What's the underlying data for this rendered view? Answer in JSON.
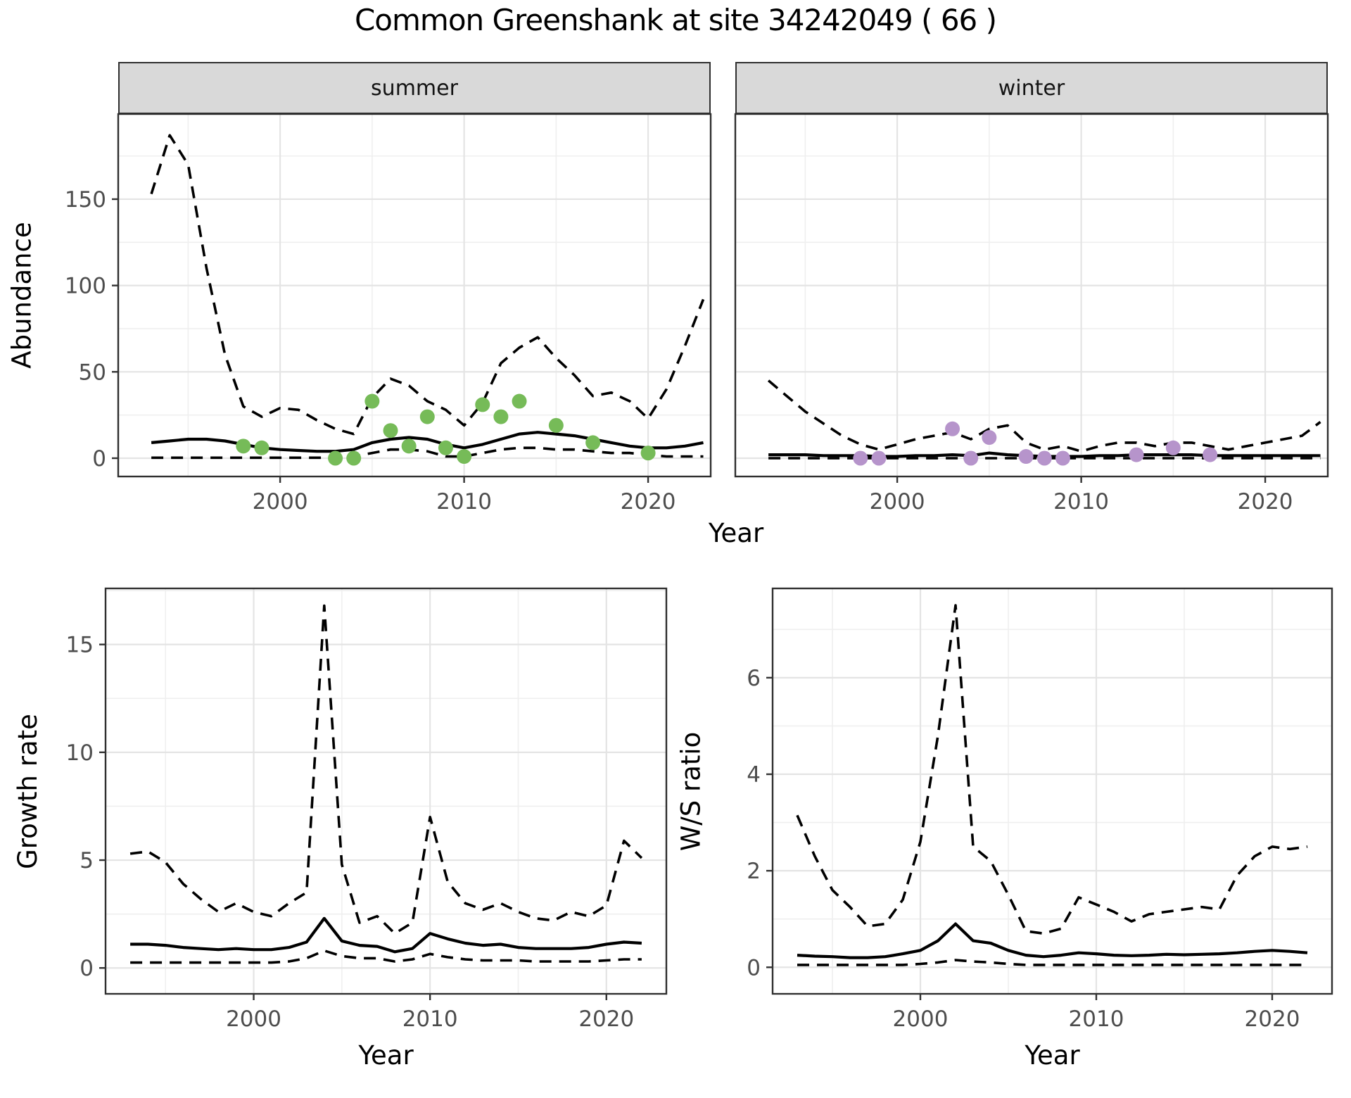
{
  "title": "Common Greenshank at site 34242049 ( 66 )",
  "facets": {
    "summer": "summer",
    "winter": "winter"
  },
  "axis_titles": {
    "abundance": "Abundance",
    "year_top": "Year",
    "growth_rate": "Growth rate",
    "year_growth": "Year",
    "ws_ratio": "W/S ratio",
    "year_ws": "Year"
  },
  "colors": {
    "point_summer": "#76BB58",
    "point_winter": "#B694CB",
    "line": "#000000",
    "grid_major": "#E4E4E4",
    "grid_minor": "#EFEFEF",
    "panel_border": "#2F2F2F",
    "tick_mark": "#333333",
    "tick_label": "#4D4D4D",
    "strip_fill": "#D9D9D9"
  },
  "chart_data": [
    {
      "id": "abundance-summer",
      "type": "line",
      "title": "summer",
      "xlabel": "Year",
      "ylabel": "Abundance",
      "xlim": [
        1991.2,
        2023.4
      ],
      "ylim": [
        -10.6,
        199.3
      ],
      "x_ticks": [
        2000,
        2010,
        2020
      ],
      "y_ticks": [
        0,
        50,
        100,
        150
      ],
      "show_y_tick_labels": true,
      "grid": true,
      "legend": "none",
      "x": [
        1993,
        1994,
        1995,
        1996,
        1997,
        1998,
        1999,
        2000,
        2001,
        2002,
        2003,
        2004,
        2005,
        2006,
        2007,
        2008,
        2009,
        2010,
        2011,
        2012,
        2013,
        2014,
        2015,
        2016,
        2017,
        2018,
        2019,
        2020,
        2021,
        2022,
        2023
      ],
      "series": [
        {
          "name": "upper_95ci",
          "style": "dashed",
          "values": [
            153,
            187,
            170,
            110,
            60,
            30,
            24,
            29,
            28,
            22,
            17,
            14,
            35,
            46,
            42,
            33,
            28,
            19,
            32,
            55,
            64,
            70,
            58,
            48,
            36,
            38,
            33,
            23,
            40,
            65,
            92
          ]
        },
        {
          "name": "median",
          "style": "solid",
          "values": [
            9,
            10,
            11,
            11,
            10,
            8,
            6,
            5,
            4.5,
            4,
            4,
            5,
            9,
            11,
            12,
            11,
            8,
            6,
            8,
            11,
            14,
            15,
            14,
            13,
            11,
            9,
            7,
            6,
            6,
            7,
            9
          ]
        },
        {
          "name": "lower_95ci",
          "style": "dashed",
          "values": [
            0.3,
            0.3,
            0.3,
            0.3,
            0.3,
            0.3,
            0.3,
            0.3,
            0.3,
            0.3,
            0.3,
            1,
            3,
            5,
            5,
            4,
            1,
            1,
            3,
            5,
            6,
            6,
            5,
            5,
            4,
            3,
            3,
            2,
            1,
            1,
            1
          ]
        }
      ],
      "points": {
        "name": "observed-counts-summer",
        "color_key": "point_summer",
        "data": [
          [
            1998,
            7
          ],
          [
            1999,
            6
          ],
          [
            2003,
            0
          ],
          [
            2004,
            0
          ],
          [
            2005,
            33
          ],
          [
            2006,
            16
          ],
          [
            2007,
            7
          ],
          [
            2008,
            24
          ],
          [
            2009,
            6
          ],
          [
            2010,
            1
          ],
          [
            2011,
            31
          ],
          [
            2012,
            24
          ],
          [
            2013,
            33
          ],
          [
            2015,
            19
          ],
          [
            2017,
            9
          ],
          [
            2020,
            3
          ]
        ]
      }
    },
    {
      "id": "abundance-winter",
      "type": "line",
      "title": "winter",
      "xlabel": "Year",
      "ylabel": "Abundance",
      "xlim": [
        1991.2,
        2023.4
      ],
      "ylim": [
        -10.6,
        199.3
      ],
      "x_ticks": [
        2000,
        2010,
        2020
      ],
      "y_ticks": [
        0,
        50,
        100,
        150
      ],
      "show_y_tick_labels": false,
      "grid": true,
      "legend": "none",
      "x": [
        1993,
        1994,
        1995,
        1996,
        1997,
        1998,
        1999,
        2000,
        2001,
        2002,
        2003,
        2004,
        2005,
        2006,
        2007,
        2008,
        2009,
        2010,
        2011,
        2012,
        2013,
        2014,
        2015,
        2016,
        2017,
        2018,
        2019,
        2020,
        2021,
        2022,
        2023
      ],
      "series": [
        {
          "name": "upper_95ci",
          "style": "dashed",
          "values": [
            45,
            36,
            27,
            20,
            13,
            8,
            5,
            8,
            11,
            13,
            15,
            11,
            17,
            19,
            9,
            5,
            7,
            4,
            7,
            9,
            9,
            7,
            9,
            9,
            7,
            5,
            7,
            9,
            11,
            13,
            21
          ]
        },
        {
          "name": "median",
          "style": "solid",
          "values": [
            2,
            2,
            2,
            1.5,
            1.5,
            1.5,
            1,
            1,
            1.5,
            1.5,
            2,
            1.5,
            3,
            2,
            1.5,
            1,
            1,
            1,
            1.5,
            1.5,
            2,
            2,
            2,
            2,
            1.5,
            1.5,
            1.5,
            1.5,
            1.5,
            1.5,
            1.5
          ]
        },
        {
          "name": "lower_95ci",
          "style": "dashed",
          "values": [
            0,
            0,
            0,
            0,
            0,
            0,
            0,
            0,
            0,
            0,
            0,
            0,
            0,
            0,
            0,
            0,
            0,
            0,
            0,
            0,
            0,
            0,
            0,
            0,
            0,
            0,
            0,
            0,
            0,
            0,
            0
          ]
        }
      ],
      "points": {
        "name": "observed-counts-winter",
        "color_key": "point_winter",
        "data": [
          [
            1998,
            0
          ],
          [
            1999,
            0
          ],
          [
            2003,
            17
          ],
          [
            2004,
            0
          ],
          [
            2005,
            12
          ],
          [
            2007,
            1
          ],
          [
            2008,
            0
          ],
          [
            2009,
            0
          ],
          [
            2013,
            2
          ],
          [
            2015,
            6
          ],
          [
            2017,
            2
          ]
        ]
      }
    },
    {
      "id": "growth-rate",
      "type": "line",
      "title": "",
      "xlabel": "Year",
      "ylabel": "Growth rate",
      "xlim": [
        1991.6,
        2023.4
      ],
      "ylim": [
        -1.2,
        17.6
      ],
      "x_ticks": [
        2000,
        2010,
        2020
      ],
      "y_ticks": [
        0,
        5,
        10,
        15
      ],
      "show_y_tick_labels": true,
      "grid": true,
      "legend": "none",
      "x": [
        1993,
        1994,
        1995,
        1996,
        1997,
        1998,
        1999,
        2000,
        2001,
        2002,
        2003,
        2004,
        2005,
        2006,
        2007,
        2008,
        2009,
        2010,
        2011,
        2012,
        2013,
        2014,
        2015,
        2016,
        2017,
        2018,
        2019,
        2020,
        2021,
        2022
      ],
      "series": [
        {
          "name": "upper_95ci",
          "style": "dashed",
          "values": [
            5.3,
            5.4,
            4.9,
            3.9,
            3.2,
            2.6,
            3.0,
            2.6,
            2.4,
            3.0,
            3.5,
            16.8,
            4.8,
            2.1,
            2.4,
            1.6,
            2.1,
            7.0,
            4.0,
            3.0,
            2.7,
            3.0,
            2.6,
            2.3,
            2.2,
            2.6,
            2.4,
            2.9,
            5.9,
            5.1
          ]
        },
        {
          "name": "median",
          "style": "solid",
          "values": [
            1.1,
            1.1,
            1.05,
            0.95,
            0.9,
            0.85,
            0.9,
            0.85,
            0.85,
            0.95,
            1.2,
            2.3,
            1.25,
            1.05,
            1.0,
            0.75,
            0.9,
            1.6,
            1.35,
            1.15,
            1.05,
            1.1,
            0.95,
            0.9,
            0.9,
            0.9,
            0.95,
            1.1,
            1.2,
            1.15
          ]
        },
        {
          "name": "lower_95ci",
          "style": "dashed",
          "values": [
            0.25,
            0.25,
            0.25,
            0.25,
            0.25,
            0.25,
            0.25,
            0.25,
            0.25,
            0.3,
            0.45,
            0.8,
            0.55,
            0.45,
            0.45,
            0.3,
            0.4,
            0.65,
            0.5,
            0.4,
            0.35,
            0.35,
            0.35,
            0.3,
            0.3,
            0.3,
            0.3,
            0.35,
            0.4,
            0.4
          ]
        }
      ],
      "points": null
    },
    {
      "id": "ws-ratio",
      "type": "line",
      "title": "",
      "xlabel": "Year",
      "ylabel": "W/S ratio",
      "xlim": [
        1991.6,
        2023.4
      ],
      "ylim": [
        -0.55,
        7.85
      ],
      "x_ticks": [
        2000,
        2010,
        2020
      ],
      "y_ticks": [
        0,
        2,
        4,
        6
      ],
      "show_y_tick_labels": true,
      "grid": true,
      "legend": "none",
      "x": [
        1993,
        1994,
        1995,
        1996,
        1997,
        1998,
        1999,
        2000,
        2001,
        2002,
        2003,
        2004,
        2005,
        2006,
        2007,
        2008,
        2009,
        2010,
        2011,
        2012,
        2013,
        2014,
        2015,
        2016,
        2017,
        2018,
        2019,
        2020,
        2021,
        2022
      ],
      "series": [
        {
          "name": "upper_95ci",
          "style": "dashed",
          "values": [
            3.15,
            2.3,
            1.6,
            1.25,
            0.85,
            0.9,
            1.4,
            2.6,
            4.8,
            7.5,
            2.5,
            2.2,
            1.5,
            0.75,
            0.7,
            0.8,
            1.45,
            1.3,
            1.15,
            0.95,
            1.1,
            1.15,
            1.2,
            1.25,
            1.2,
            1.9,
            2.3,
            2.5,
            2.45,
            2.5
          ]
        },
        {
          "name": "median",
          "style": "solid",
          "values": [
            0.25,
            0.23,
            0.22,
            0.2,
            0.2,
            0.22,
            0.28,
            0.35,
            0.55,
            0.9,
            0.55,
            0.5,
            0.35,
            0.25,
            0.22,
            0.25,
            0.3,
            0.28,
            0.25,
            0.24,
            0.25,
            0.27,
            0.26,
            0.27,
            0.28,
            0.3,
            0.33,
            0.35,
            0.33,
            0.3
          ]
        },
        {
          "name": "lower_95ci",
          "style": "dashed",
          "values": [
            0.05,
            0.05,
            0.05,
            0.05,
            0.05,
            0.05,
            0.05,
            0.07,
            0.1,
            0.15,
            0.12,
            0.1,
            0.07,
            0.05,
            0.05,
            0.05,
            0.05,
            0.05,
            0.05,
            0.05,
            0.05,
            0.05,
            0.05,
            0.05,
            0.05,
            0.05,
            0.05,
            0.05,
            0.05,
            0.05
          ]
        }
      ],
      "points": null
    }
  ]
}
